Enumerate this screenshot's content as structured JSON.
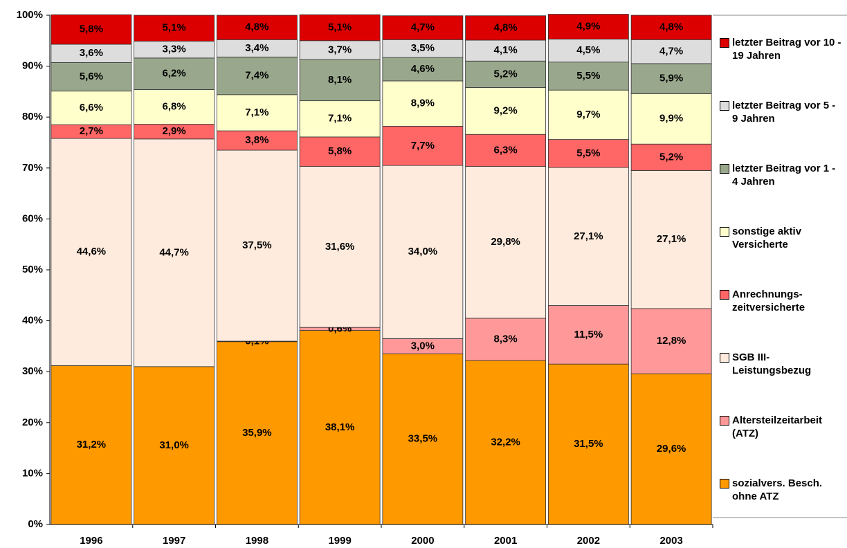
{
  "chart_data": {
    "type": "stacked_bar",
    "categories": [
      "1996",
      "1997",
      "1998",
      "1999",
      "2000",
      "2001",
      "2002",
      "2003"
    ],
    "ylim": [
      0,
      100
    ],
    "yticks": [
      {
        "value": 0,
        "label": "0%"
      },
      {
        "value": 10,
        "label": "10%"
      },
      {
        "value": 20,
        "label": "20%"
      },
      {
        "value": 30,
        "label": "30%"
      },
      {
        "value": 40,
        "label": "40%"
      },
      {
        "value": 50,
        "label": "50%"
      },
      {
        "value": 60,
        "label": "60%"
      },
      {
        "value": 70,
        "label": "70%"
      },
      {
        "value": 80,
        "label": "80%"
      },
      {
        "value": 90,
        "label": "90%"
      },
      {
        "value": 100,
        "label": "100%"
      }
    ],
    "legend_position": "right",
    "series": [
      {
        "name": "sozialvers. Besch. ohne ATZ",
        "color": "#FF9900",
        "values": [
          31.2,
          31.0,
          35.9,
          38.1,
          33.5,
          32.2,
          31.5,
          29.6
        ],
        "value_labels": [
          "31,2%",
          "31,0%",
          "35,9%",
          "38,1%",
          "33,5%",
          "32,2%",
          "31,5%",
          "29,6%"
        ]
      },
      {
        "name": "Altersteilzeitarbeit (ATZ)",
        "color": "#FF9999",
        "values": [
          null,
          null,
          0.1,
          0.6,
          3.0,
          8.3,
          11.5,
          12.8
        ],
        "value_labels": [
          null,
          null,
          "0,1%",
          "0,6%",
          "3,0%",
          "8,3%",
          "11,5%",
          "12,8%"
        ]
      },
      {
        "name": "SGB III-Leistungsbezug",
        "color": "#FFEBDD",
        "values": [
          44.6,
          44.7,
          37.5,
          31.6,
          34.0,
          29.8,
          27.1,
          27.1
        ],
        "value_labels": [
          "44,6%",
          "44,7%",
          "37,5%",
          "31,6%",
          "34,0%",
          "29,8%",
          "27,1%",
          "27,1%"
        ]
      },
      {
        "name": "Anrechnungs-zeitversicherte",
        "color": "#FF6666",
        "values": [
          2.7,
          2.9,
          3.8,
          5.8,
          7.7,
          6.3,
          5.5,
          5.2
        ],
        "value_labels": [
          "2,7%",
          "2,9%",
          "3,8%",
          "5,8%",
          "7,7%",
          "6,3%",
          "5,5%",
          "5,2%"
        ]
      },
      {
        "name": "sonstige aktiv Versicherte",
        "color": "#FFFFCC",
        "values": [
          6.6,
          6.8,
          7.1,
          7.1,
          8.9,
          9.2,
          9.7,
          9.9
        ],
        "value_labels": [
          "6,6%",
          "6,8%",
          "7,1%",
          "7,1%",
          "8,9%",
          "9,2%",
          "9,7%",
          "9,9%"
        ]
      },
      {
        "name": "letzter Beitrag vor 1 - 4 Jahren",
        "color": "#99A88C",
        "values": [
          5.6,
          6.2,
          7.4,
          8.1,
          4.6,
          5.2,
          5.5,
          5.9
        ],
        "value_labels": [
          "5,6%",
          "6,2%",
          "7,4%",
          "8,1%",
          "4,6%",
          "5,2%",
          "5,5%",
          "5,9%"
        ]
      },
      {
        "name": "letzter Beitrag vor 5 - 9 Jahren",
        "color": "#DDDDDD",
        "values": [
          3.6,
          3.3,
          3.4,
          3.7,
          3.5,
          4.1,
          4.5,
          4.7
        ],
        "value_labels": [
          "3,6%",
          "3,3%",
          "3,4%",
          "3,7%",
          "3,5%",
          "4,1%",
          "4,5%",
          "4,7%"
        ]
      },
      {
        "name": "letzter Beitrag vor 10 - 19 Jahren",
        "color": "#DD0000",
        "values": [
          5.8,
          5.1,
          4.8,
          5.1,
          4.7,
          4.8,
          4.9,
          4.8
        ],
        "value_labels": [
          "5,8%",
          "5,1%",
          "4,8%",
          "5,1%",
          "4,7%",
          "4,8%",
          "4,9%",
          "4,8%"
        ]
      }
    ]
  }
}
